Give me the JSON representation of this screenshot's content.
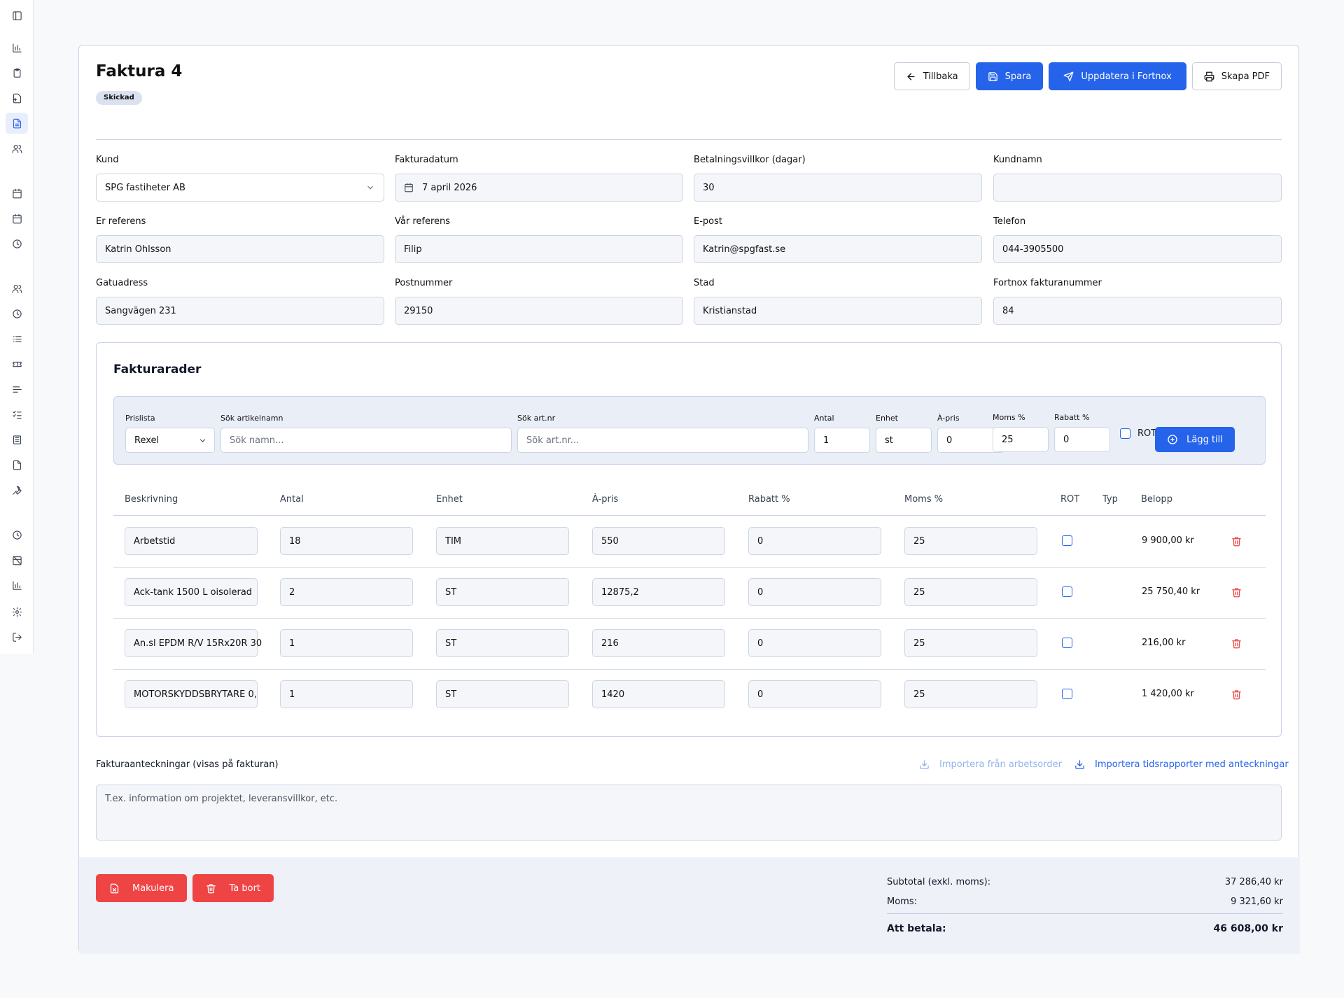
{
  "invoice": {
    "title": "Faktura 4",
    "status": "Skickad"
  },
  "actions": {
    "back": "Tillbaka",
    "save": "Spara",
    "update_fortnox": "Uppdatera i Fortnox",
    "pdf": "Skapa PDF"
  },
  "fields": {
    "kund": {
      "label": "Kund",
      "value": "SPG fastiheter AB"
    },
    "fakturadatum": {
      "label": "Fakturadatum",
      "value": "7 april 2026"
    },
    "betalningsvillkor": {
      "label": "Betalningsvillkor (dagar)",
      "value": "30"
    },
    "kundnamn": {
      "label": "Kundnamn",
      "value": ""
    },
    "er_referens": {
      "label": "Er referens",
      "value": "Katrin Ohlsson"
    },
    "var_referens": {
      "label": "Vår referens",
      "value": "Filip"
    },
    "epost": {
      "label": "E-post",
      "value": "Katrin@spgfast.se"
    },
    "telefon": {
      "label": "Telefon",
      "value": "044-3905500"
    },
    "gatuadress": {
      "label": "Gatuadress",
      "value": "Sangvägen 231"
    },
    "postnummer": {
      "label": "Postnummer",
      "value": "29150"
    },
    "stad": {
      "label": "Stad",
      "value": "Kristianstad"
    },
    "fortnox_nr": {
      "label": "Fortnox fakturanummer",
      "value": "84"
    }
  },
  "rows_section": {
    "title": "Fakturarader",
    "add_bar": {
      "prislista_label": "Prislista",
      "prislista_value": "Rexel",
      "name_label": "Sök artikelnamn",
      "name_placeholder": "Sök namn...",
      "artnr_label": "Sök art.nr",
      "artnr_placeholder": "Sök art.nr...",
      "antal_label": "Antal",
      "antal_value": "1",
      "enhet_label": "Enhet",
      "enhet_value": "st",
      "apris_label": "À-pris",
      "apris_value": "0",
      "moms_label": "Moms %",
      "moms_value": "25",
      "rabatt_label": "Rabatt %",
      "rabatt_value": "0",
      "rot_label": "ROT",
      "add_label": "Lägg till"
    },
    "headers": [
      "Beskrivning",
      "Antal",
      "Enhet",
      "À-pris",
      "Rabatt %",
      "Moms %",
      "ROT",
      "Typ",
      "Belopp"
    ],
    "rows": [
      {
        "desc": "Arbetstid",
        "antal": "18",
        "enhet": "TIM",
        "apris": "550",
        "rabatt": "0",
        "moms": "25",
        "belopp": "9 900,00 kr"
      },
      {
        "desc": "Ack-tank 1500 L oisolerad",
        "antal": "2",
        "enhet": "ST",
        "apris": "12875,2",
        "rabatt": "0",
        "moms": "25",
        "belopp": "25 750,40 kr"
      },
      {
        "desc": "An.sl EPDM R/V 15Rx20R 30",
        "antal": "1",
        "enhet": "ST",
        "apris": "216",
        "rabatt": "0",
        "moms": "25",
        "belopp": "216,00 kr"
      },
      {
        "desc": "MOTORSKYDDSBRYTARE 0,",
        "antal": "1",
        "enhet": "ST",
        "apris": "1420",
        "rabatt": "0",
        "moms": "25",
        "belopp": "1 420,00 kr"
      }
    ]
  },
  "notes": {
    "label": "Fakturaanteckningar (visas på fakturan)",
    "import_workorder": "Importera från arbetsorder",
    "import_timereports": "Importera tidsrapporter med anteckningar",
    "placeholder": "T.ex. information om projektet, leveransvillkor, etc."
  },
  "footer": {
    "cancel": "Makulera",
    "delete": "Ta bort",
    "subtotal_label": "Subtotal (exkl. moms):",
    "subtotal": "37 286,40 kr",
    "moms_label": "Moms:",
    "moms": "9 321,60 kr",
    "total_label": "Att betala:",
    "total": "46 608,00 kr"
  },
  "colors": {
    "accent": "#2563eb",
    "danger": "#ef4444",
    "muted_link": "#93b4ee"
  }
}
